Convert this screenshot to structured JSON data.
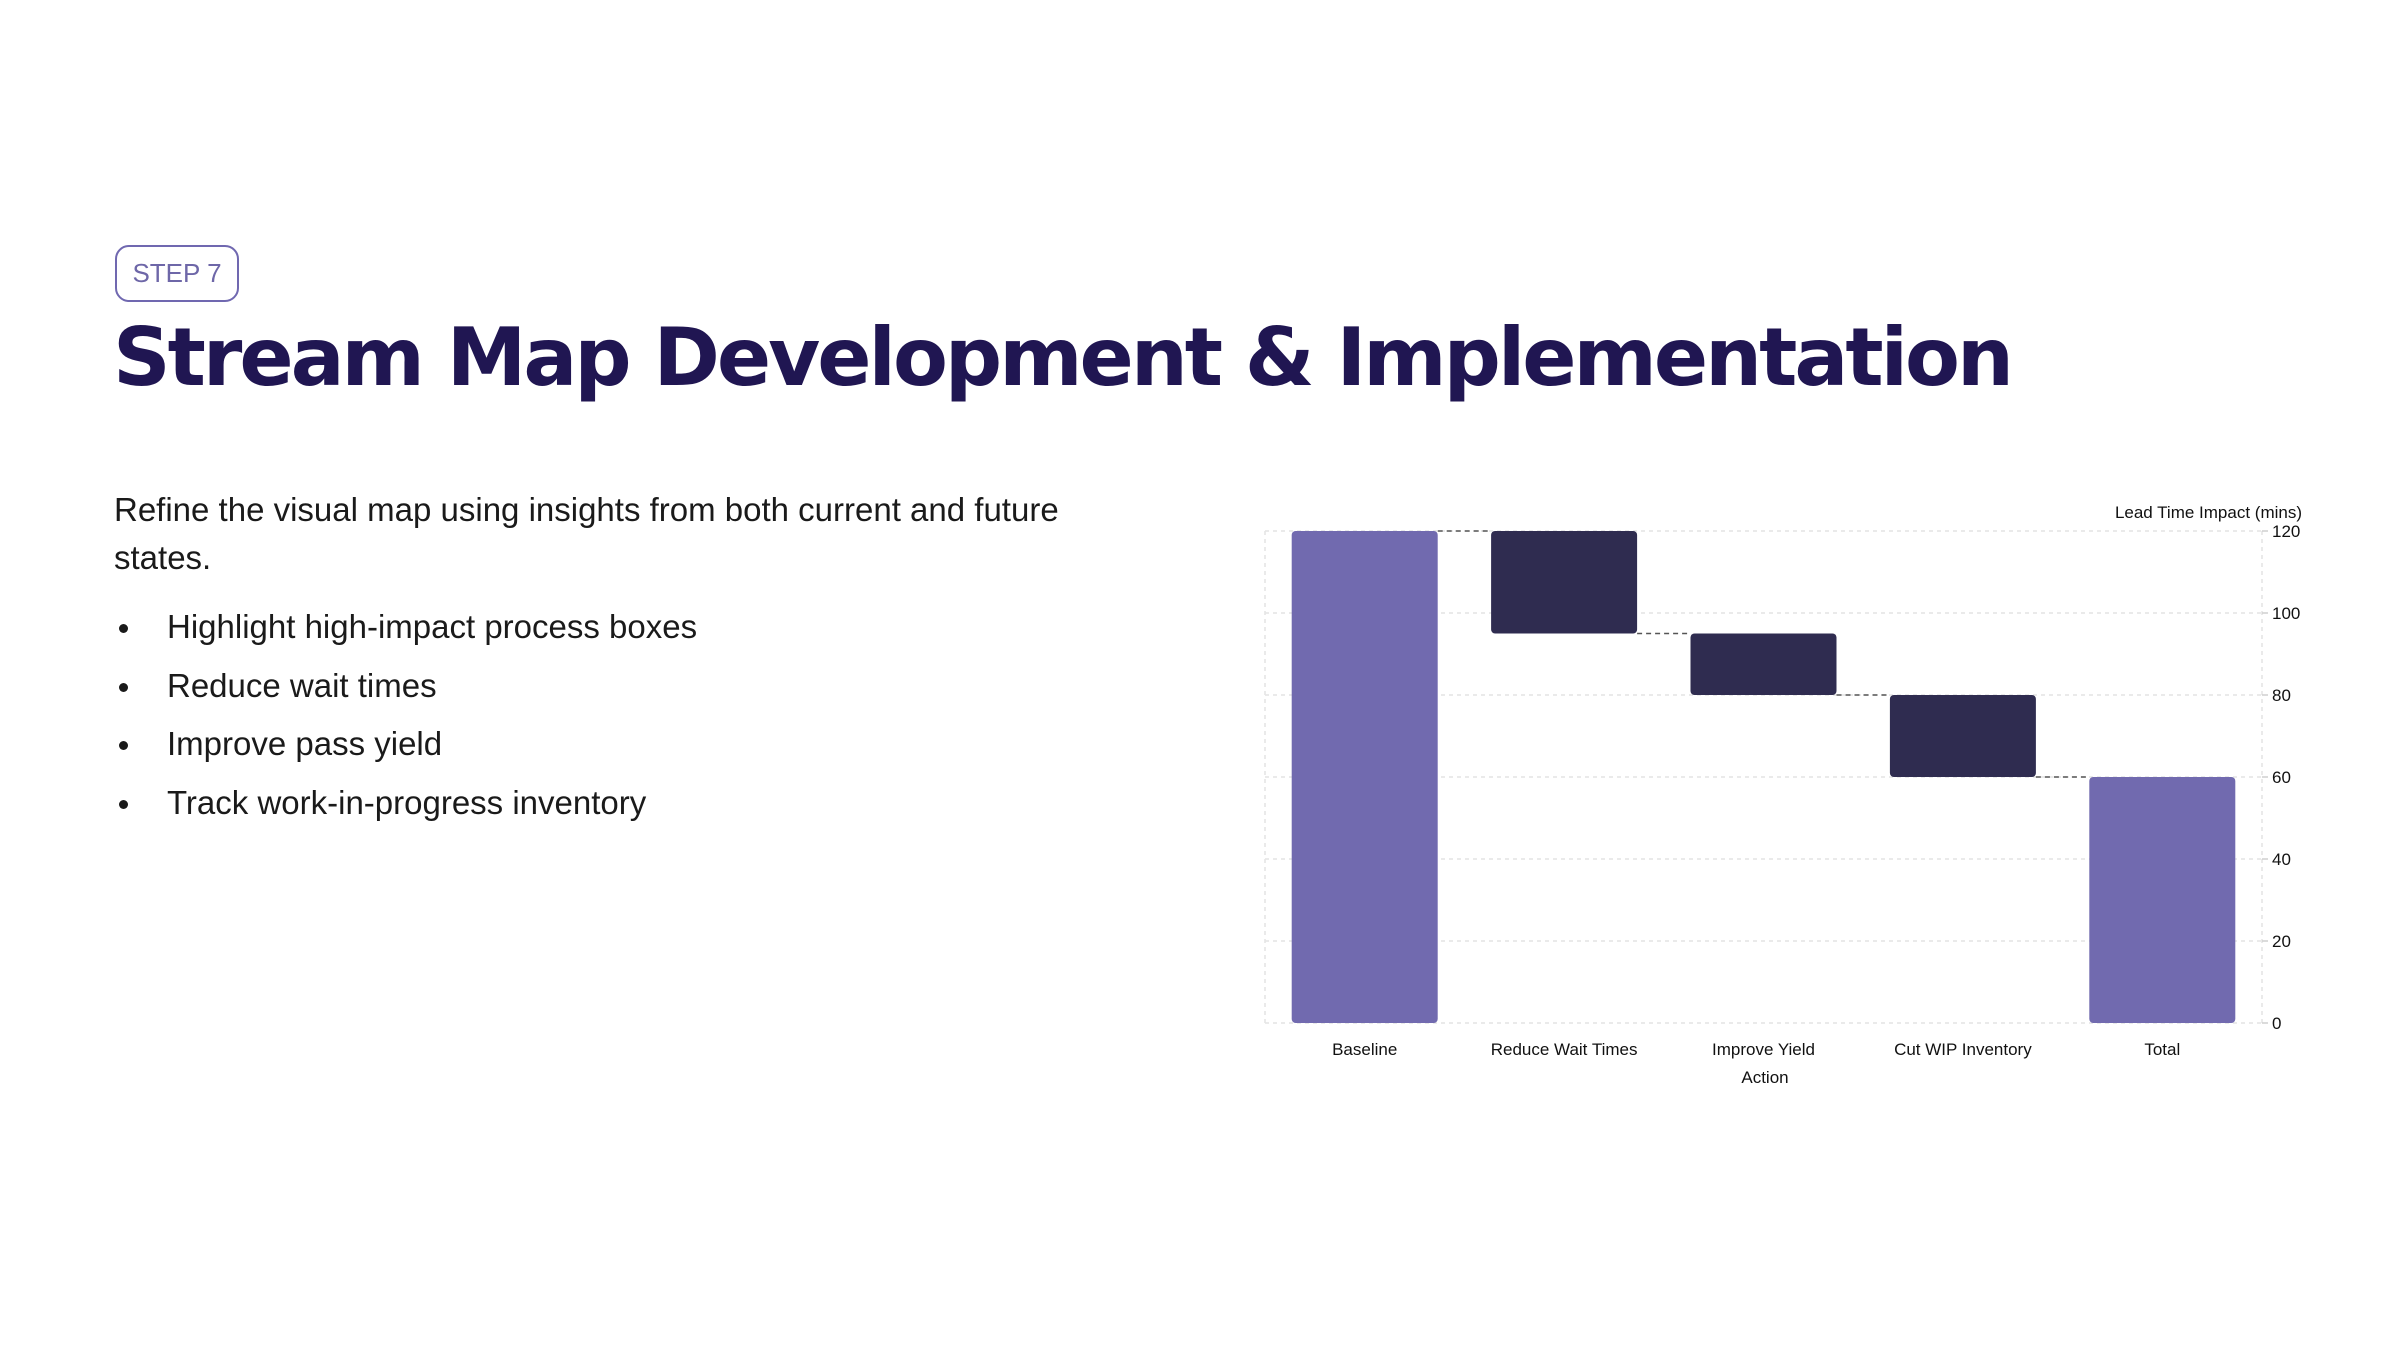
{
  "badge": "STEP 7",
  "title": "Stream Map Development & Implementation",
  "intro": "Refine the visual map using insights from both current and future states.",
  "bullets": [
    "Highlight high-impact process boxes",
    "Reduce wait times",
    "Improve pass yield",
    "Track work-in-progress inventory"
  ],
  "colors": {
    "title": "#201652",
    "badge": "#7068B0",
    "total_bar": "#716AAF",
    "step_bar": "#2F2C50"
  },
  "chart_data": {
    "type": "bar",
    "subtype": "waterfall",
    "categories": [
      "Baseline",
      "Reduce Wait Times",
      "Improve Yield",
      "Cut WIP Inventory",
      "Total"
    ],
    "values": [
      120,
      -25,
      -15,
      -20,
      60
    ],
    "bar_kind": [
      "total",
      "delta",
      "delta",
      "delta",
      "total"
    ],
    "ylabel": "Lead Time Impact (mins)",
    "xlabel": "Action",
    "ylim": [
      0,
      120
    ],
    "yticks": [
      0,
      20,
      40,
      60,
      80,
      100,
      120
    ],
    "y_axis_side": "right",
    "grid": true,
    "connectors": true
  }
}
